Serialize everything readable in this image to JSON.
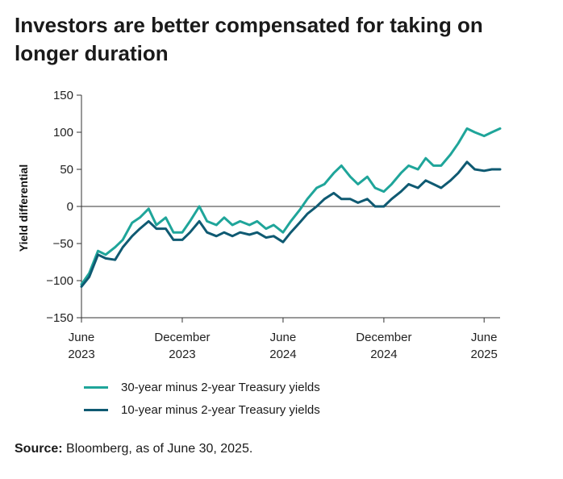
{
  "title": "Investors are better compensated for taking on longer duration",
  "source": {
    "label": "Source:",
    "text": " Bloomberg, as of June 30, 2025."
  },
  "chart_data": {
    "type": "line",
    "ylabel": "Yield differential",
    "xlabel": "",
    "ylim": [
      -150,
      150
    ],
    "yticks": [
      -150,
      -100,
      -50,
      0,
      50,
      100,
      150
    ],
    "ytick_labels": [
      "−150",
      "−100",
      "−50",
      "0",
      "50",
      "100",
      "150"
    ],
    "xlim": [
      "2023-06-01",
      "2025-06-30"
    ],
    "xticks": [
      {
        "date": "2023-06-01",
        "line1": "June",
        "line2": "2023"
      },
      {
        "date": "2023-12-01",
        "line1": "December",
        "line2": "2023"
      },
      {
        "date": "2024-06-01",
        "line1": "June",
        "line2": "2024"
      },
      {
        "date": "2024-12-01",
        "line1": "December",
        "line2": "2024"
      },
      {
        "date": "2025-06-01",
        "line1": "June",
        "line2": "2025"
      }
    ],
    "zero_line": true,
    "grid": false,
    "legend_position": "bottom-left",
    "x": [
      "2023-06-01",
      "2023-06-15",
      "2023-07-01",
      "2023-07-15",
      "2023-08-01",
      "2023-08-15",
      "2023-09-01",
      "2023-09-15",
      "2023-10-01",
      "2023-10-15",
      "2023-11-01",
      "2023-11-15",
      "2023-12-01",
      "2023-12-15",
      "2024-01-01",
      "2024-01-15",
      "2024-02-01",
      "2024-02-15",
      "2024-03-01",
      "2024-03-15",
      "2024-04-01",
      "2024-04-15",
      "2024-05-01",
      "2024-05-15",
      "2024-06-01",
      "2024-06-15",
      "2024-07-01",
      "2024-07-15",
      "2024-08-01",
      "2024-08-15",
      "2024-09-01",
      "2024-09-15",
      "2024-10-01",
      "2024-10-15",
      "2024-11-01",
      "2024-11-15",
      "2024-12-01",
      "2024-12-15",
      "2025-01-01",
      "2025-01-15",
      "2025-02-01",
      "2025-02-15",
      "2025-03-01",
      "2025-03-15",
      "2025-04-01",
      "2025-04-15",
      "2025-05-01",
      "2025-05-15",
      "2025-06-01",
      "2025-06-15",
      "2025-06-30"
    ],
    "series": [
      {
        "name": "30-year minus 2-year Treasury yields",
        "color": "#1fa59a",
        "values": [
          -105,
          -90,
          -60,
          -65,
          -55,
          -45,
          -22,
          -15,
          -3,
          -25,
          -15,
          -35,
          -35,
          -20,
          0,
          -20,
          -25,
          -15,
          -25,
          -20,
          -25,
          -20,
          -30,
          -25,
          -35,
          -20,
          -5,
          10,
          25,
          30,
          45,
          55,
          40,
          30,
          40,
          25,
          20,
          30,
          45,
          55,
          50,
          65,
          55,
          55,
          70,
          85,
          105,
          100,
          95,
          100,
          105
        ]
      },
      {
        "name": "10-year minus 2-year Treasury yields",
        "color": "#0f5a72",
        "values": [
          -108,
          -95,
          -65,
          -70,
          -72,
          -55,
          -40,
          -30,
          -20,
          -30,
          -30,
          -45,
          -45,
          -35,
          -20,
          -35,
          -40,
          -35,
          -40,
          -35,
          -38,
          -35,
          -42,
          -40,
          -48,
          -35,
          -22,
          -10,
          0,
          10,
          18,
          10,
          10,
          5,
          10,
          0,
          0,
          10,
          20,
          30,
          25,
          35,
          30,
          25,
          35,
          45,
          60,
          50,
          48,
          50,
          50
        ]
      }
    ]
  }
}
